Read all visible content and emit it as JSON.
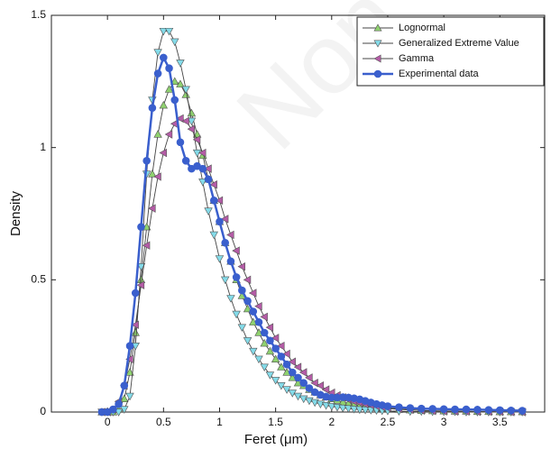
{
  "chart_data": {
    "type": "line",
    "xlabel": "Feret (μm)",
    "ylabel": "Density",
    "watermark": "Non",
    "x": [
      -0.05,
      0,
      0.05,
      0.1,
      0.15,
      0.2,
      0.25,
      0.3,
      0.35,
      0.4,
      0.45,
      0.5,
      0.55,
      0.6,
      0.65,
      0.7,
      0.75,
      0.8,
      0.85,
      0.9,
      0.95,
      1.0,
      1.05,
      1.1,
      1.15,
      1.2,
      1.25,
      1.3,
      1.35,
      1.4,
      1.45,
      1.5,
      1.55,
      1.6,
      1.65,
      1.7,
      1.75,
      1.8,
      1.85,
      1.9,
      1.95,
      2.0,
      2.05,
      2.1,
      2.15,
      2.2,
      2.25,
      2.3,
      2.35,
      2.4,
      2.45,
      2.5,
      2.6,
      2.7,
      2.8,
      2.9,
      3.0,
      3.1,
      3.2,
      3.3,
      3.4,
      3.5,
      3.6,
      3.7
    ],
    "series": [
      {
        "name": "Lognormal",
        "color": "#8fd16f",
        "marker": "^",
        "values": [
          0,
          0,
          0,
          0.01,
          0.05,
          0.15,
          0.3,
          0.5,
          0.7,
          0.9,
          1.05,
          1.16,
          1.22,
          1.25,
          1.24,
          1.2,
          1.13,
          1.05,
          0.97,
          0.88,
          0.8,
          0.72,
          0.64,
          0.57,
          0.5,
          0.44,
          0.39,
          0.34,
          0.3,
          0.26,
          0.23,
          0.2,
          0.17,
          0.15,
          0.13,
          0.11,
          0.1,
          0.085,
          0.075,
          0.065,
          0.057,
          0.05,
          0.044,
          0.038,
          0.033,
          0.029,
          0.025,
          0.022,
          0.019,
          0.017,
          0.015,
          0.013,
          0.01,
          0.008,
          0.006,
          0.005,
          0.004,
          0.003,
          0.003,
          0.002,
          0.002,
          0.001,
          0.001,
          0.001
        ]
      },
      {
        "name": "Generalized Extreme Value",
        "color": "#84dbe9",
        "marker": "v",
        "values": [
          0,
          0,
          0,
          0,
          0.01,
          0.06,
          0.25,
          0.55,
          0.9,
          1.18,
          1.36,
          1.44,
          1.44,
          1.4,
          1.32,
          1.22,
          1.1,
          0.98,
          0.87,
          0.76,
          0.67,
          0.58,
          0.5,
          0.43,
          0.37,
          0.32,
          0.27,
          0.23,
          0.2,
          0.17,
          0.14,
          0.12,
          0.1,
          0.085,
          0.072,
          0.06,
          0.05,
          0.043,
          0.036,
          0.03,
          0.025,
          0.021,
          0.018,
          0.015,
          0.013,
          0.011,
          0.009,
          0.008,
          0.007,
          0.006,
          0.005,
          0.004,
          0.003,
          0.002,
          0.002,
          0.001,
          0.001,
          0.001,
          0,
          0,
          0,
          0,
          0,
          0
        ]
      },
      {
        "name": "Gamma",
        "color": "#b45ca6",
        "marker": "<",
        "values": [
          0,
          0,
          0.01,
          0.04,
          0.1,
          0.2,
          0.33,
          0.48,
          0.63,
          0.77,
          0.89,
          0.98,
          1.05,
          1.09,
          1.11,
          1.1,
          1.07,
          1.03,
          0.98,
          0.92,
          0.86,
          0.8,
          0.73,
          0.67,
          0.61,
          0.55,
          0.5,
          0.45,
          0.4,
          0.36,
          0.32,
          0.28,
          0.25,
          0.22,
          0.19,
          0.17,
          0.15,
          0.13,
          0.11,
          0.1,
          0.085,
          0.073,
          0.063,
          0.055,
          0.047,
          0.04,
          0.035,
          0.03,
          0.026,
          0.022,
          0.019,
          0.016,
          0.012,
          0.009,
          0.006,
          0.004,
          0.003,
          0.002,
          0.002,
          0.001,
          0.001,
          0.001,
          0,
          0
        ]
      },
      {
        "name": "Experimental data",
        "color": "#3a5fcd",
        "marker": "o",
        "values": [
          0,
          0,
          0.01,
          0.03,
          0.1,
          0.25,
          0.45,
          0.7,
          0.95,
          1.15,
          1.28,
          1.34,
          1.3,
          1.18,
          1.02,
          0.95,
          0.92,
          0.93,
          0.92,
          0.88,
          0.8,
          0.72,
          0.64,
          0.57,
          0.51,
          0.46,
          0.42,
          0.38,
          0.34,
          0.3,
          0.27,
          0.24,
          0.21,
          0.18,
          0.15,
          0.13,
          0.11,
          0.09,
          0.075,
          0.065,
          0.058,
          0.055,
          0.055,
          0.056,
          0.055,
          0.052,
          0.048,
          0.042,
          0.036,
          0.03,
          0.026,
          0.022,
          0.018,
          0.015,
          0.013,
          0.012,
          0.011,
          0.01,
          0.01,
          0.009,
          0.008,
          0.007,
          0.006,
          0.005
        ]
      }
    ],
    "xlim": [
      -0.5,
      3.9
    ],
    "xticks": [
      0,
      0.5,
      1,
      1.5,
      2,
      2.5,
      3,
      3.5
    ],
    "ylim": [
      0,
      1.5
    ],
    "yticks": [
      0,
      0.5,
      1,
      1.5
    ],
    "legend": "upper right",
    "grid": false
  }
}
